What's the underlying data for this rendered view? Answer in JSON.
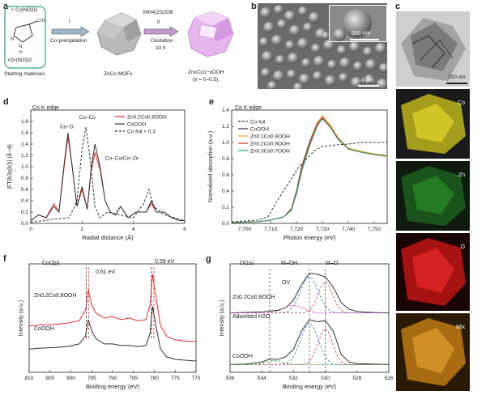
{
  "panels": {
    "a": {
      "letter": "a",
      "materials": [
        "+ Co(NO3)2",
        "+Zn(NO3)2"
      ],
      "materials_caption": "Starting materials",
      "step1": {
        "roman": "I",
        "label": "Co-precipitation"
      },
      "mof_caption": "ZnCo MOFs",
      "step2": {
        "reagent": "(NH4)2S2O8",
        "roman": "II",
        "label1": "Oxidation",
        "label2": "10 h"
      },
      "product_caption": "ZnxCo1−xOOH",
      "product_range": "(x = 0–0.5)"
    },
    "b": {
      "letter": "b",
      "inset_scale": "500 nm",
      "scale": "4 μm"
    },
    "c": {
      "letter": "c",
      "tem_scale": "200 nm",
      "maps": [
        {
          "label": "Co",
          "color": "#c9c21a"
        },
        {
          "label": "Zn",
          "color": "#2e9a2e"
        },
        {
          "label": "O",
          "color": "#e01c1c"
        },
        {
          "label": "Mix",
          "color": "#d98a1e"
        }
      ]
    },
    "d": {
      "letter": "d",
      "edge_label": "Co K edge"
    },
    "e": {
      "letter": "e",
      "edge_label": "Co K edge"
    },
    "f": {
      "letter": "f",
      "orbital": "Co(2p)",
      "shift1": "0.61 eV",
      "shift2": "0.59 eV",
      "trace_top": "Zn0.2Co0.8OOH",
      "trace_bottom": "CoOOH"
    },
    "g": {
      "letter": "g",
      "orbital": "O(1s)",
      "peak_oh": "M–OH",
      "peak_o": "M–O",
      "peak_ov": "OV",
      "trace_top": "Zn0.2Co0.8OOH",
      "adsorbed": "Adsorbed H2O",
      "trace_bottom": "CoOOH"
    }
  },
  "chart_data": [
    {
      "panel": "d",
      "type": "line",
      "xlabel": "Radial distance (Å)",
      "ylabel": "|FT(k3χ(k))| (Å−4)",
      "xlim": [
        0,
        6
      ],
      "ylim": [
        0,
        2.0
      ],
      "xticks": [
        0,
        2,
        4,
        6
      ],
      "yticks": [
        0,
        0.2,
        0.4,
        0.6,
        0.8,
        1.0,
        1.2,
        1.4,
        1.6,
        1.8
      ],
      "annotations": [
        "Co–O",
        "Co–Co",
        "Co–Co/Co–Zn"
      ],
      "series": [
        {
          "name": "Zn0.2Co0.8OOH",
          "color": "#e03030",
          "x": [
            0,
            0.3,
            0.6,
            0.9,
            1.1,
            1.3,
            1.45,
            1.6,
            1.8,
            2.0,
            2.2,
            2.35,
            2.5,
            2.7,
            2.9,
            3.1,
            3.3,
            3.5,
            3.8,
            4.1,
            4.5,
            4.7,
            4.9,
            5.2,
            5.5,
            5.8,
            6.0
          ],
          "y": [
            0.05,
            0.15,
            0.1,
            0.35,
            0.2,
            1.0,
            1.52,
            1.05,
            0.3,
            0.6,
            0.25,
            0.9,
            1.25,
            0.95,
            0.4,
            0.2,
            0.15,
            0.3,
            0.1,
            0.2,
            0.2,
            0.35,
            0.2,
            0.2,
            0.1,
            0.05,
            0.05
          ]
        },
        {
          "name": "CoOOH",
          "color": "#333333",
          "x": [
            0,
            0.3,
            0.6,
            0.9,
            1.1,
            1.3,
            1.45,
            1.6,
            1.8,
            2.0,
            2.2,
            2.35,
            2.5,
            2.7,
            2.9,
            3.1,
            3.3,
            3.5,
            3.8,
            4.1,
            4.5,
            4.7,
            4.9,
            5.2,
            5.5,
            5.8,
            6.0
          ],
          "y": [
            0.05,
            0.15,
            0.1,
            0.3,
            0.2,
            1.05,
            1.6,
            1.05,
            0.3,
            0.65,
            0.25,
            0.95,
            1.4,
            1.0,
            0.4,
            0.2,
            0.15,
            0.3,
            0.1,
            0.2,
            0.2,
            0.4,
            0.2,
            0.2,
            0.1,
            0.05,
            0.05
          ]
        },
        {
          "name": "Co foil × 0.3",
          "color": "#333333",
          "dashed": true,
          "x": [
            0,
            0.5,
            1.0,
            1.5,
            1.8,
            2.0,
            2.15,
            2.3,
            2.5,
            2.7,
            3.0,
            3.5,
            4.0,
            4.4,
            4.6,
            4.8,
            5.2,
            5.6,
            6.0
          ],
          "y": [
            0.02,
            0.05,
            0.08,
            0.1,
            0.4,
            1.3,
            1.7,
            1.2,
            0.3,
            0.1,
            0.2,
            0.15,
            0.1,
            0.35,
            0.6,
            0.3,
            0.15,
            0.1,
            0.05
          ]
        }
      ]
    },
    {
      "panel": "e",
      "type": "line",
      "xlabel": "Photon energy (eV)",
      "ylabel": "Normalized absorption (a.u.)",
      "xlim": [
        7695,
        7755
      ],
      "ylim": [
        0,
        1.4
      ],
      "xticks": [
        7700,
        7710,
        7720,
        7730,
        7740,
        7750
      ],
      "yticks": [
        0,
        0.2,
        0.4,
        0.6,
        0.8,
        1.0,
        1.2,
        1.4
      ],
      "series": [
        {
          "name": "Co foil",
          "color": "#333333",
          "dashed": true,
          "x": [
            7695,
            7705,
            7709,
            7712,
            7715,
            7718,
            7721,
            7724,
            7727,
            7730,
            7735,
            7740,
            7745,
            7750,
            7755
          ],
          "y": [
            0.02,
            0.04,
            0.08,
            0.25,
            0.4,
            0.55,
            0.7,
            0.8,
            0.9,
            0.95,
            0.97,
            0.98,
            1.0,
            1.0,
            1.0
          ]
        },
        {
          "name": "CoOOH",
          "color": "#333333",
          "x": [
            7695,
            7705,
            7710,
            7715,
            7718,
            7720,
            7722,
            7725,
            7728,
            7730,
            7733,
            7736,
            7740,
            7745,
            7750,
            7755
          ],
          "y": [
            0.01,
            0.02,
            0.04,
            0.08,
            0.18,
            0.4,
            0.7,
            1.0,
            1.25,
            1.3,
            1.2,
            1.05,
            0.92,
            0.88,
            0.85,
            0.83
          ]
        },
        {
          "name": "Zn0.1Co0.9OOH",
          "color": "#e8a020",
          "x": [
            7695,
            7705,
            7710,
            7715,
            7718,
            7720,
            7722,
            7725,
            7728,
            7730,
            7733,
            7736,
            7740,
            7745,
            7750,
            7755
          ],
          "y": [
            0.01,
            0.02,
            0.04,
            0.08,
            0.17,
            0.38,
            0.67,
            0.98,
            1.24,
            1.33,
            1.22,
            1.06,
            0.93,
            0.89,
            0.86,
            0.84
          ]
        },
        {
          "name": "Zn0.2Co0.8OOH",
          "color": "#e03030",
          "x": [
            7695,
            7705,
            7710,
            7715,
            7718,
            7720,
            7722,
            7725,
            7728,
            7730,
            7733,
            7736,
            7740,
            7745,
            7750,
            7755
          ],
          "y": [
            0.01,
            0.02,
            0.04,
            0.08,
            0.17,
            0.37,
            0.66,
            0.97,
            1.22,
            1.31,
            1.2,
            1.05,
            0.92,
            0.88,
            0.85,
            0.83
          ]
        },
        {
          "name": "Zn0.3Co0.7OOH",
          "color": "#2aa07a",
          "x": [
            7695,
            7705,
            7710,
            7715,
            7718,
            7720,
            7722,
            7725,
            7728,
            7730,
            7733,
            7736,
            7740,
            7745,
            7750,
            7755
          ],
          "y": [
            0.01,
            0.02,
            0.04,
            0.08,
            0.16,
            0.36,
            0.64,
            0.95,
            1.2,
            1.29,
            1.19,
            1.04,
            0.92,
            0.88,
            0.85,
            0.83
          ]
        }
      ]
    },
    {
      "panel": "f",
      "type": "line",
      "xlabel": "Binding energy (eV)",
      "ylabel": "Intensity (a.u.)",
      "xlim": [
        810,
        770
      ],
      "xticks": [
        810,
        805,
        800,
        795,
        790,
        785,
        780,
        775,
        770
      ],
      "series": [
        {
          "name": "Zn0.2Co0.8OOH",
          "color": "#e03030",
          "x": [
            810,
            807,
            804,
            801,
            798,
            796.5,
            795.8,
            795,
            794,
            792,
            790,
            788,
            786,
            784,
            782,
            781,
            780.4,
            779.5,
            778.5,
            777,
            775,
            772,
            770
          ],
          "y": [
            0.6,
            0.62,
            0.63,
            0.65,
            0.7,
            0.9,
            1.3,
            1.0,
            0.85,
            0.75,
            0.78,
            0.72,
            0.75,
            0.7,
            0.72,
            1.0,
            1.6,
            1.1,
            0.6,
            0.4,
            0.33,
            0.3,
            0.3
          ]
        },
        {
          "name": "CoOOH",
          "color": "#333333",
          "x": [
            810,
            807,
            804,
            801,
            798,
            796.5,
            795.8,
            795,
            794,
            792,
            790,
            788,
            786,
            784,
            782,
            781,
            780.4,
            779.5,
            778.5,
            777,
            775,
            772,
            770
          ],
          "y": [
            0.15,
            0.17,
            0.18,
            0.2,
            0.25,
            0.4,
            0.72,
            0.5,
            0.35,
            0.25,
            0.25,
            0.22,
            0.22,
            0.2,
            0.22,
            0.45,
            0.98,
            0.55,
            0.15,
            0.0,
            -0.05,
            -0.07,
            -0.08
          ]
        }
      ]
    },
    {
      "panel": "g",
      "type": "line",
      "xlabel": "Binding energy (eV)",
      "ylabel": "Intensity (a.u.)",
      "xlim": [
        536,
        526
      ],
      "xticks": [
        536,
        534,
        532,
        530,
        528,
        526
      ],
      "series": [
        {
          "name": "Zn0.2Co0.8OOH",
          "color": "#333333",
          "x": [
            536,
            535,
            534,
            533,
            532.5,
            532,
            531.5,
            531,
            530.5,
            530,
            529.5,
            529,
            528.5,
            528,
            527,
            526
          ],
          "y": [
            1.05,
            1.06,
            1.07,
            1.1,
            1.15,
            1.3,
            1.6,
            1.82,
            1.8,
            1.75,
            1.55,
            1.25,
            1.12,
            1.08,
            1.06,
            1.05
          ]
        },
        {
          "name": "CoOOH",
          "color": "#333333",
          "x": [
            536,
            535,
            534,
            533.5,
            533,
            532.5,
            532,
            531.5,
            531,
            530.5,
            530,
            529.5,
            529,
            528.5,
            528,
            527,
            526
          ],
          "y": [
            0.05,
            0.06,
            0.1,
            0.16,
            0.15,
            0.2,
            0.35,
            0.7,
            0.92,
            0.88,
            0.9,
            0.7,
            0.25,
            0.1,
            0.07,
            0.06,
            0.05
          ]
        }
      ]
    }
  ]
}
